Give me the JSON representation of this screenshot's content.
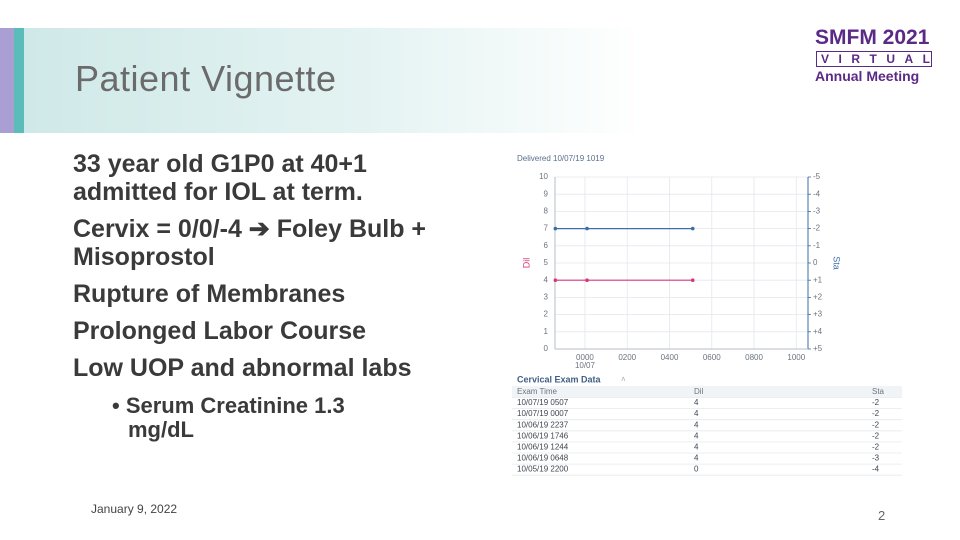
{
  "header": {
    "title": "Patient Vignette"
  },
  "logo": {
    "line1": "SMFM 2021",
    "line2": "VIRTUAL",
    "line3": "Annual Meeting"
  },
  "body": {
    "paragraphs": [
      "33 year old G1P0 at 40+1 admitted for IOL at term.",
      "Cervix = 0/0/-4  ➔ Foley Bulb + Misoprostol",
      "Rupture of Membranes",
      "Prolonged Labor Course",
      "Low UOP and abnormal labs"
    ],
    "sub_bullets": [
      "Serum Creatinine 1.3 mg/dL"
    ]
  },
  "exam_chart": {
    "title": "Delivered 10/07/19 1019",
    "y_label": "Dil",
    "y2_label": "Sta",
    "x_date_label": "10/07",
    "xlim": [
      -2.6,
      10.6
    ],
    "xticks": [
      {
        "value": 0,
        "label": "0000"
      },
      {
        "value": 2,
        "label": "0200"
      },
      {
        "value": 4,
        "label": "0400"
      },
      {
        "value": 6,
        "label": "0600"
      },
      {
        "value": 8,
        "label": "0800"
      },
      {
        "value": 10,
        "label": "1000"
      }
    ],
    "ylim": [
      0,
      10
    ],
    "yticks": [
      0,
      1,
      2,
      3,
      4,
      5,
      6,
      7,
      8,
      9,
      10
    ],
    "y2lim": [
      5,
      -5
    ],
    "y2ticks": [
      {
        "value": 5,
        "label": "+5"
      },
      {
        "value": 4,
        "label": "+4"
      },
      {
        "value": 3,
        "label": "+3"
      },
      {
        "value": 2,
        "label": "+2"
      },
      {
        "value": 1,
        "label": "+1"
      },
      0,
      -1,
      -2,
      -3,
      -4,
      -5
    ],
    "x": [
      -1.4,
      0.1,
      5.1
    ],
    "series": [
      {
        "color": "#d63a7a",
        "values": [
          4,
          4,
          4
        ]
      },
      {
        "color": "#3b6fa6",
        "values": [
          -2,
          -2,
          -2
        ],
        "axis": "y2"
      }
    ]
  },
  "table": {
    "title": "Cervical Exam Data",
    "header": [
      "Exam Time",
      "Dil",
      "Sta"
    ],
    "rows": [
      [
        "10/07/19 0507",
        "4",
        "-2"
      ],
      [
        "10/07/19 0007",
        "4",
        "-2"
      ],
      [
        "10/06/19 2237",
        "4",
        "-2"
      ],
      [
        "10/06/19 1746",
        "4",
        "-2"
      ],
      [
        "10/06/19 1244",
        "4",
        "-2"
      ],
      [
        "10/06/19 0648",
        "4",
        "-3"
      ],
      [
        "10/05/19 2200",
        "0",
        "-4"
      ]
    ]
  },
  "footer": {
    "date": "January 9, 2022",
    "page": "2"
  }
}
